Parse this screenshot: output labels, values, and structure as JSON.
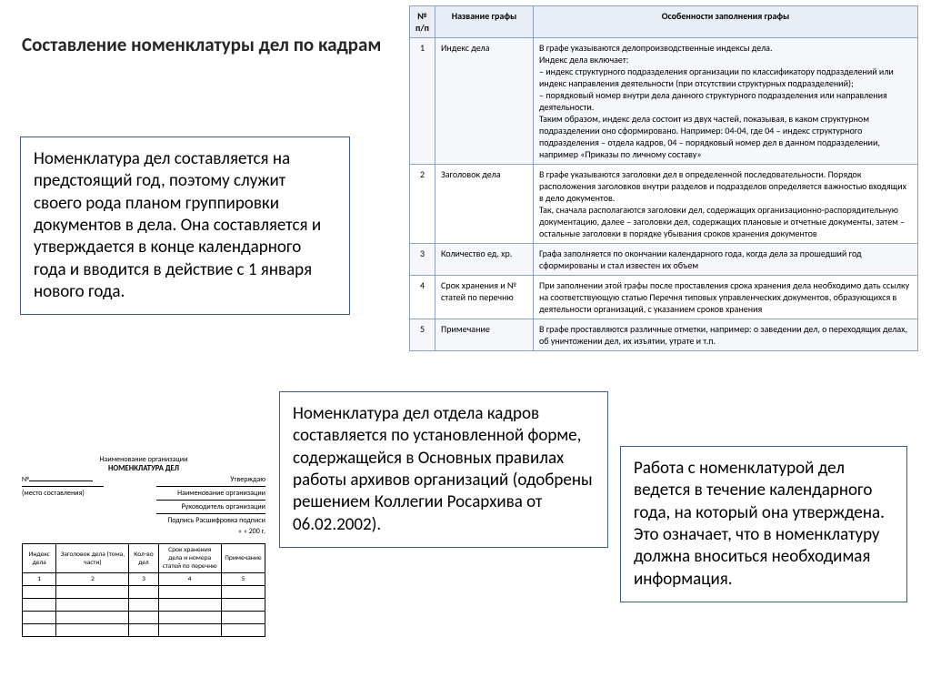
{
  "title": "Составление номенклатуры дел по кадрам",
  "box1": "Номенклатура дел составляется на предстоящий год, поэтому служит своего рода планом группировки документов в дела. Она составляется и утверждается в конце календарного года и вводится в действие с 1 января нового года.",
  "box2": "Номенклатура дел отдела кадров составляется по установленной форме, содержащейся в Основных правилах работы архивов организаций (одобрены решением Коллегии Росархива от 06.02.2002).",
  "box3": "Работа с номенклатурой дел ведется в течение календарного года, на который она утверждена. Это означает, что в номенклатуру должна вноситься необходимая информация.",
  "details": {
    "headers": {
      "num": "№ п/п",
      "name": "Название графы",
      "feat": "Особенности заполнения графы"
    },
    "rows": [
      {
        "n": "1",
        "name": "Индекс дела",
        "feat": "В графе указываются делопроизводственные индексы дела.\nИндекс дела включает:\n– индекс структурного подразделения организации по классификатору подразделений или индекс направления деятельности (при отсутствии структурных подразделений);\n– порядковый номер внутри дела данного структурного подразделения или направления деятельности.\nТаким образом, индекс дела состоит из двух частей, показывая, в каком структурном подразделении оно сформировано. Например: 04-04, где 04 – индекс структурного подразделения – отдела кадров, 04 – порядковый номер дел в данном подразделении, например «Приказы по личному составу»"
      },
      {
        "n": "2",
        "name": "Заголовок дела",
        "feat": "В графе указываются заголовки дел в определенной последовательности. Порядок расположения заголовков внутри разделов и подразделов определяется важностью входящих в дело документов.\nТак, сначала располагаются заголовки дел, содержащих организационно-распорядительную документацию, далее – заголовки дел, содержащих плановые и отчетные документы, затем – остальные заголовки в порядке убывания сроков хранения документов"
      },
      {
        "n": "3",
        "name": "Количество ед. хр.",
        "feat": "Графа заполняется по окончании календарного года, когда дела за прошедший год сформированы и стал известен их объем"
      },
      {
        "n": "4",
        "name": "Срок хранения и № статей по перечню",
        "feat": "При заполнении этой графы после проставления срока хранения дела необходимо дать ссылку на соответствующую статью Перечня типовых управленческих документов, образующихся в деятельности организаций, с указанием сроков хранения"
      },
      {
        "n": "5",
        "name": "Примечание",
        "feat": "В графе проставляются различные отметки, например: о заведении дел, о переходящих делах, об уничтожении дел, их изъятии, утрате и т.п."
      }
    ]
  },
  "form": {
    "org": "Наименование организации",
    "title": "НОМЕНКЛАТУРА ДЕЛ",
    "num_label": "№",
    "approve": "Утверждаю",
    "place": "(место составления)",
    "org2": "Наименование организации",
    "head": "Руководитель организации",
    "sign": "Подпись  Расшифровка подписи",
    "date": "«   »                200    г.",
    "headers": [
      "Индекс дела",
      "Заголовок дела (тома, части)",
      "Кол-во дел",
      "Срок хранения дела и номера статей по перечню",
      "Примечание"
    ],
    "nums": [
      "1",
      "2",
      "3",
      "4",
      "5"
    ]
  },
  "colors": {
    "border": "#385d8a",
    "tableHeaderBg": "#e9eef6",
    "tableBorder": "#8ca3bf"
  }
}
